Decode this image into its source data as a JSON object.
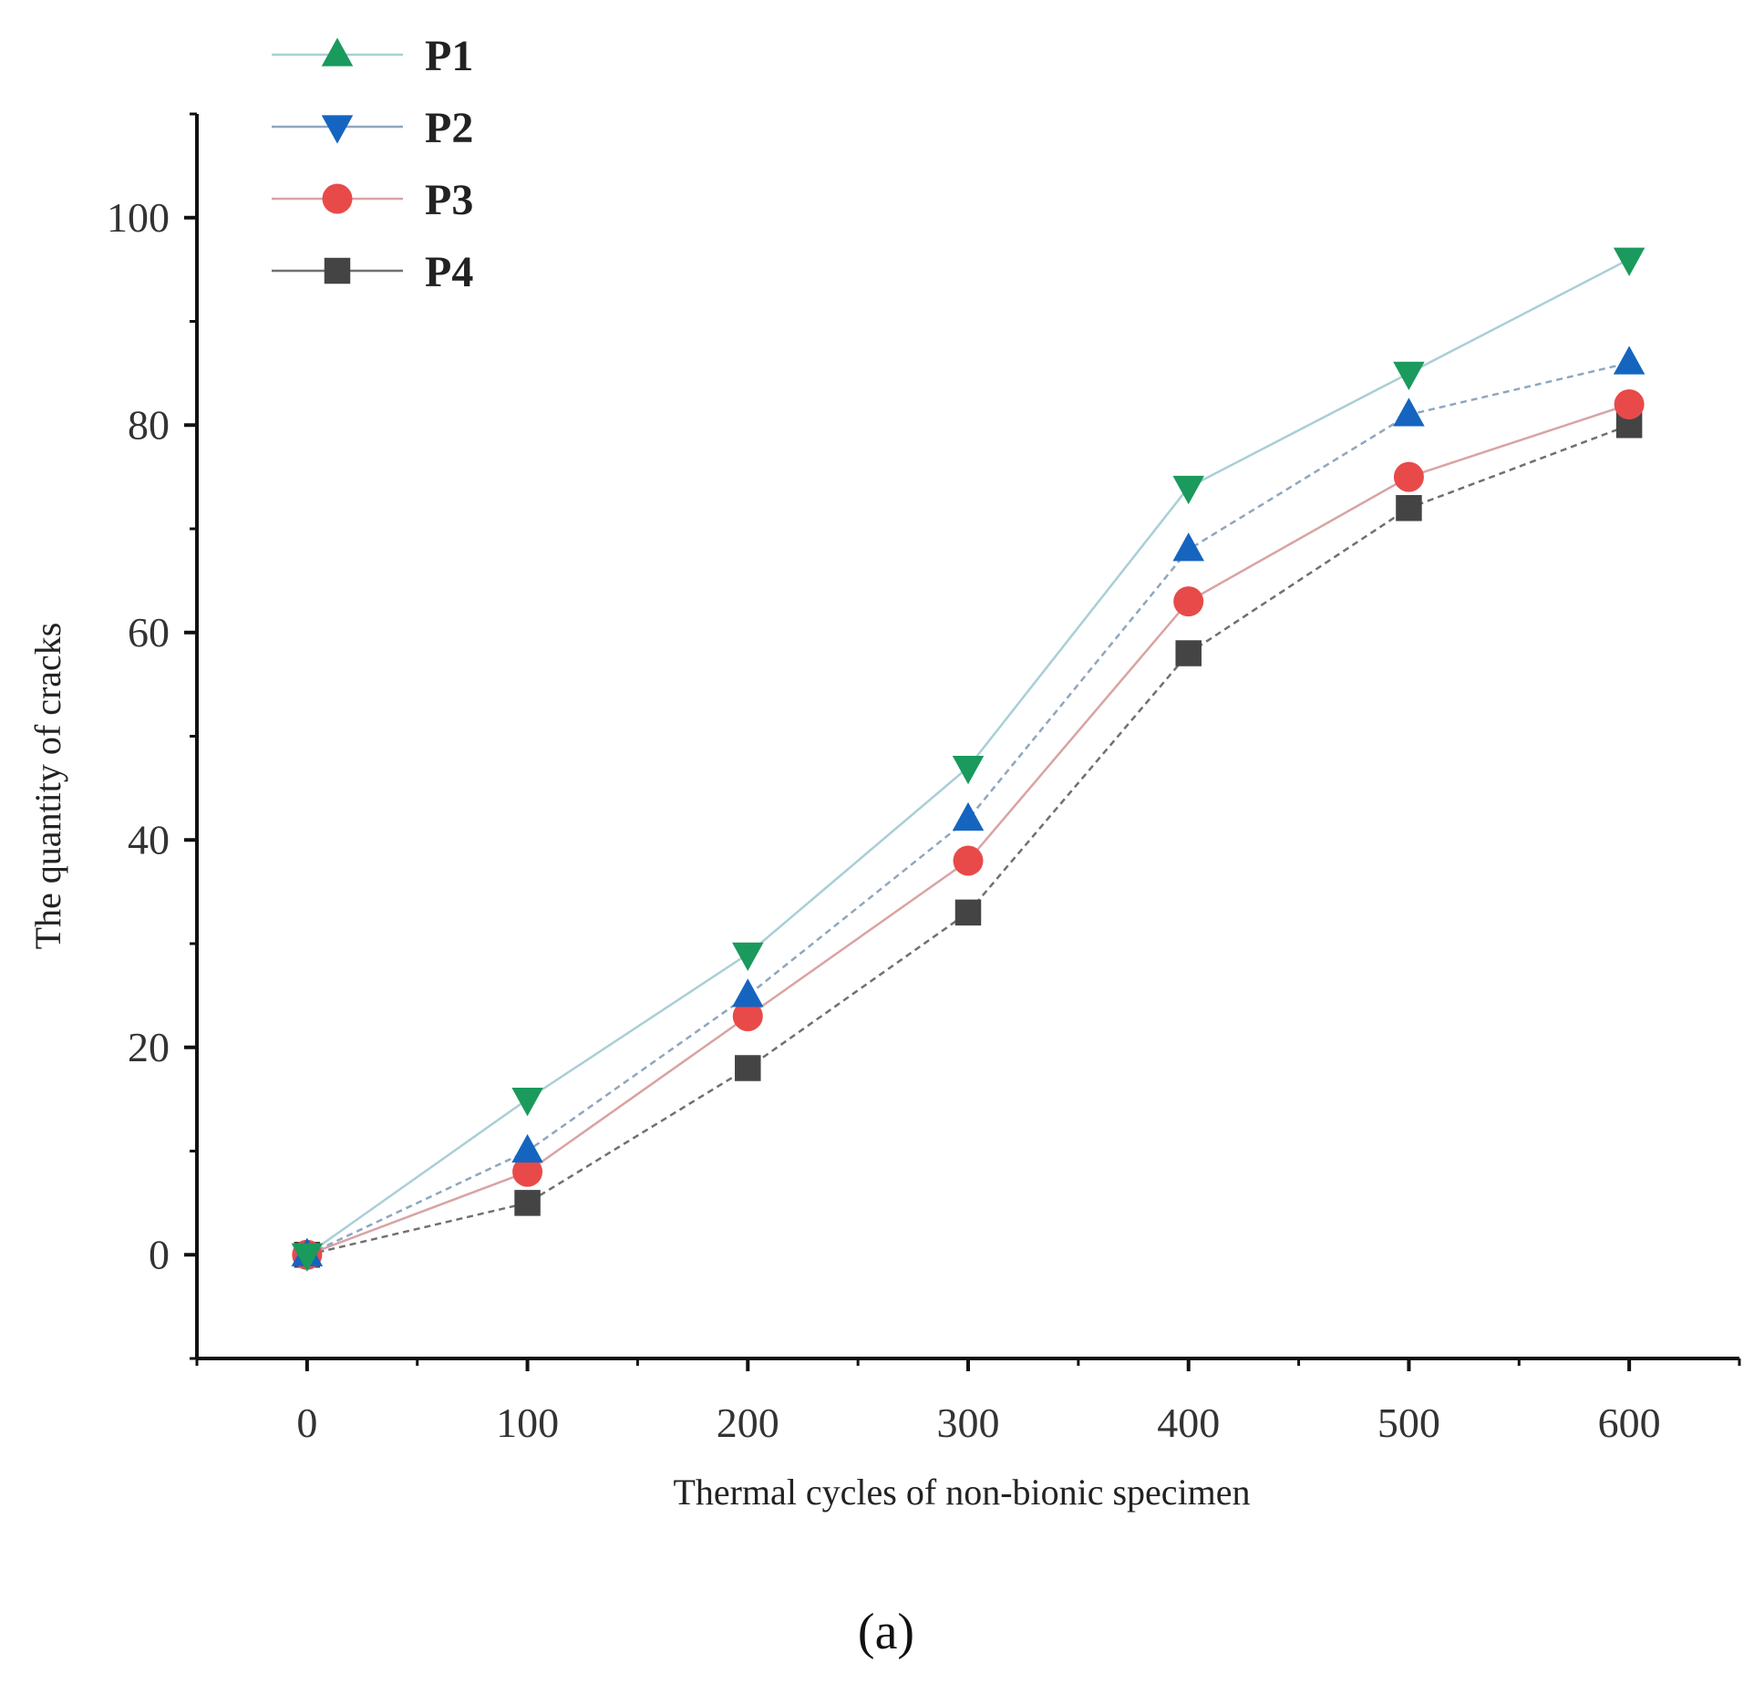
{
  "chart_data": {
    "type": "line",
    "xlabel": "Thermal cycles of non-bionic specimen",
    "ylabel": "The quantity of cracks",
    "xlim": [
      -50,
      650
    ],
    "ylim": [
      -10,
      110
    ],
    "xticks": [
      0,
      100,
      200,
      300,
      400,
      500,
      600
    ],
    "yticks": [
      0,
      20,
      40,
      60,
      80,
      100
    ],
    "x_tick_labels": [
      "0",
      "100",
      "200",
      "300",
      "400",
      "500",
      "600"
    ],
    "y_tick_labels": [
      "0",
      "20",
      "40",
      "60",
      "80",
      "100"
    ],
    "x": [
      0,
      100,
      200,
      300,
      400,
      500,
      600
    ],
    "grid": false,
    "legend_position": "top-left",
    "series": [
      {
        "name": "P1",
        "values": [
          0,
          15,
          29,
          47,
          74,
          85,
          96
        ],
        "color": "#1a9a5c",
        "line_color": "#a9cfd6",
        "marker": "triangle-down",
        "legend_marker": "triangle-up"
      },
      {
        "name": "P2",
        "values": [
          0,
          10,
          25,
          42,
          68,
          81,
          86
        ],
        "color": "#1565c0",
        "line_color": "#8fa6bf",
        "marker": "triangle-up",
        "legend_marker": "triangle-down"
      },
      {
        "name": "P3",
        "values": [
          0,
          8,
          23,
          38,
          63,
          75,
          82
        ],
        "color": "#e84a4a",
        "line_color": "#d9a3a3",
        "marker": "circle",
        "legend_marker": "circle"
      },
      {
        "name": "P4",
        "values": [
          0,
          5,
          18,
          33,
          58,
          72,
          80
        ],
        "color": "#444444",
        "line_color": "#707070",
        "marker": "square",
        "legend_marker": "square"
      }
    ],
    "caption": "(a)"
  }
}
